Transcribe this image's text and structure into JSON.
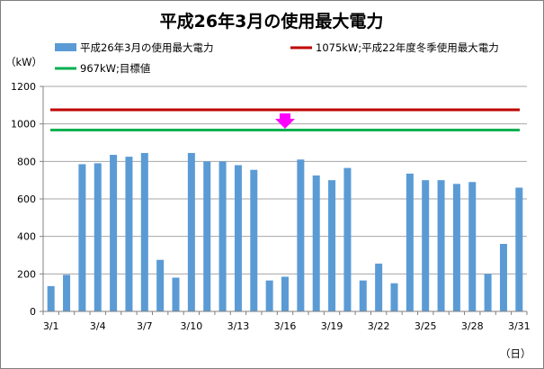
{
  "chart_data": {
    "type": "bar",
    "title": "平成26年3月の使用最大電力",
    "ylabel": "（kW）",
    "xlabel": "（日）",
    "ylim": [
      0,
      1200
    ],
    "yticks": [
      0,
      200,
      400,
      600,
      800,
      1000,
      1200
    ],
    "grid": "horizontal",
    "categories": [
      "3/1",
      "3/2",
      "3/3",
      "3/4",
      "3/5",
      "3/6",
      "3/7",
      "3/8",
      "3/9",
      "3/10",
      "3/11",
      "3/12",
      "3/13",
      "3/14",
      "3/15",
      "3/16",
      "3/17",
      "3/18",
      "3/19",
      "3/20",
      "3/21",
      "3/22",
      "3/23",
      "3/24",
      "3/25",
      "3/26",
      "3/27",
      "3/28",
      "3/29",
      "3/30",
      "3/31"
    ],
    "xtick_labels": [
      "3/1",
      "3/4",
      "3/7",
      "3/10",
      "3/13",
      "3/16",
      "3/19",
      "3/22",
      "3/25",
      "3/28",
      "3/31"
    ],
    "series": [
      {
        "name": "平成26年3月の使用最大電力",
        "color": "#5b9bd5",
        "values": [
          135,
          195,
          785,
          790,
          835,
          825,
          845,
          275,
          180,
          845,
          800,
          800,
          780,
          755,
          165,
          185,
          810,
          725,
          700,
          765,
          165,
          255,
          150,
          735,
          700,
          700,
          680,
          690,
          200,
          360,
          660
        ]
      }
    ],
    "reference_lines": [
      {
        "name": "1075kW;平成22年度冬季使用最大電力",
        "value": 1075,
        "color": "#c00000"
      },
      {
        "name": "967kW;目標値",
        "value": 967,
        "color": "#00b050"
      }
    ],
    "annotation": {
      "type": "down-arrow",
      "color": "#ff00ff",
      "x": "3/16"
    },
    "legend_position": "top"
  }
}
